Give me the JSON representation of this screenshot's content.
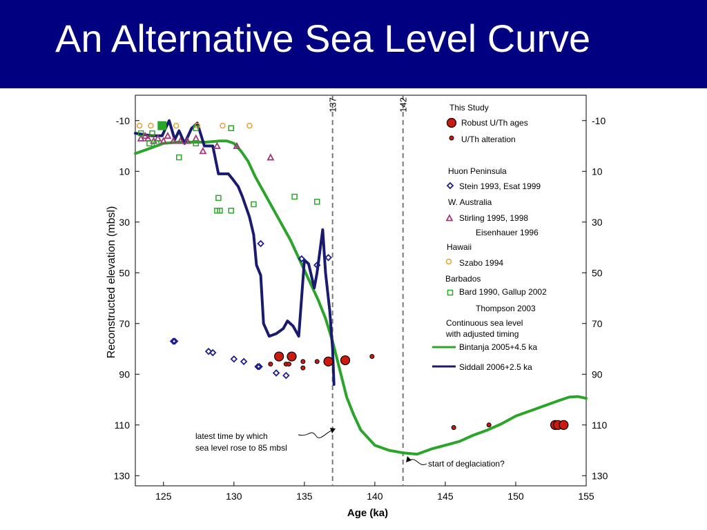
{
  "slide": {
    "title": "An Alternative Sea Level Curve"
  },
  "chart_data": {
    "type": "scatter",
    "title": "",
    "xlabel": "Age (ka)",
    "ylabel": "Reconstructed elevation (mbsl)",
    "xlim": [
      123,
      155
    ],
    "ylim": [
      -20,
      134
    ],
    "y_inverted": true,
    "x_ticks": [
      125,
      130,
      135,
      140,
      145,
      150,
      155
    ],
    "y_ticks": [
      -10,
      10,
      30,
      50,
      70,
      90,
      110,
      130
    ],
    "vlines": [
      {
        "x": 137,
        "label": "137"
      },
      {
        "x": 142,
        "label": "142"
      }
    ],
    "annotations": [
      {
        "lines": [
          "latest time by which",
          "sea level rose to 85 mbsl"
        ],
        "x": 137,
        "y": 120
      },
      {
        "text": "start of deglaciation?",
        "x": 142,
        "y": 134
      }
    ],
    "legend": {
      "position": "right",
      "groups": [
        {
          "header": "This Study",
          "entries": [
            {
              "label": "Robust U/Th ages",
              "marker": "big-red-dot"
            },
            {
              "label": "U/Th alteration",
              "marker": "small-red-dot"
            }
          ]
        },
        {
          "header": "Huon Peninsula",
          "entries": [
            {
              "label": "Stein 1993, Esat 1999",
              "marker": "blue-diamond"
            }
          ]
        },
        {
          "header": "W. Australia",
          "entries": [
            {
              "label": "Stirling 1995, 1998",
              "marker": "purple-triangle"
            },
            {
              "label": "Eisenhauer 1996",
              "marker": "none"
            }
          ]
        },
        {
          "header": "Hawaii",
          "entries": [
            {
              "label": "Szabo 1994",
              "marker": "orange-circle"
            }
          ]
        },
        {
          "header": "Barbados",
          "entries": [
            {
              "label": "Bard 1990, Gallup 2002",
              "marker": "green-square"
            },
            {
              "label": "Thompson 2003",
              "marker": "none"
            }
          ]
        },
        {
          "header": "Continuous sea level\nwith adjusted timing",
          "entries": [
            {
              "label": "Bintanja 2005+4.5 ka",
              "marker": "green-line"
            },
            {
              "label": "Siddall 2006+2.5 ka",
              "marker": "navy-line"
            }
          ]
        }
      ]
    },
    "colors": {
      "robust": "#cc1a10",
      "huon": "#1e1e8c",
      "waust": "#a0367a",
      "hawaii": "#e8a030",
      "barbados": "#2aa52a",
      "bintanja": "#2aa52a",
      "siddall": "#1a1a6e"
    },
    "series": [
      {
        "name": "Robust U/Th ages",
        "kind": "points",
        "color": "#cc1a10",
        "points": [
          [
            133.2,
            83
          ],
          [
            134.1,
            83
          ],
          [
            136.7,
            85
          ],
          [
            137.9,
            84.5
          ],
          [
            152.8,
            110
          ],
          [
            153.0,
            110
          ],
          [
            153.4,
            110
          ]
        ]
      },
      {
        "name": "U/Th alteration",
        "kind": "points",
        "color": "#cc1a10",
        "points": [
          [
            132.6,
            86
          ],
          [
            133.7,
            86
          ],
          [
            133.9,
            86
          ],
          [
            134.9,
            85
          ],
          [
            134.9,
            87.5
          ],
          [
            135.9,
            85
          ],
          [
            139.8,
            83
          ],
          [
            145.6,
            111
          ],
          [
            148.1,
            110
          ]
        ]
      },
      {
        "name": "Stein 1993, Esat 1999",
        "kind": "points",
        "color": "#1e1e8c",
        "points": [
          [
            125.7,
            77
          ],
          [
            125.8,
            77
          ],
          [
            128.2,
            81
          ],
          [
            128.5,
            81.5
          ],
          [
            130.0,
            84
          ],
          [
            130.7,
            85
          ],
          [
            131.7,
            87
          ],
          [
            131.8,
            87
          ],
          [
            133.0,
            89.5
          ],
          [
            133.7,
            90.5
          ],
          [
            131.9,
            38.5
          ],
          [
            134.8,
            44.5
          ],
          [
            135.9,
            47
          ],
          [
            136.7,
            44
          ]
        ]
      },
      {
        "name": "Stirling 1995, 1998",
        "kind": "points",
        "color": "#a0367a",
        "points": [
          [
            123.4,
            -3
          ],
          [
            123.7,
            -4
          ],
          [
            123.9,
            -3
          ],
          [
            124.3,
            -2
          ],
          [
            124.6,
            -3
          ],
          [
            125.0,
            -2
          ],
          [
            125.3,
            -4
          ],
          [
            125.7,
            -2
          ],
          [
            126.2,
            -2
          ],
          [
            126.7,
            -2
          ],
          [
            127.3,
            -3
          ],
          [
            127.8,
            2
          ],
          [
            128.8,
            0
          ],
          [
            130.2,
            0
          ],
          [
            132.6,
            4.5
          ]
        ]
      },
      {
        "name": "Szabo 1994",
        "kind": "points",
        "color": "#e8a030",
        "points": [
          [
            123.3,
            -8
          ],
          [
            124.1,
            -8
          ],
          [
            125.0,
            -8
          ],
          [
            125.9,
            -8
          ],
          [
            127.4,
            -8
          ],
          [
            129.2,
            -8
          ],
          [
            131.1,
            -8
          ]
        ]
      },
      {
        "name": "Bard 1990, Gallup 2002",
        "kind": "points",
        "color": "#2aa52a",
        "points": [
          [
            123.4,
            -5
          ],
          [
            124.2,
            -5
          ],
          [
            124.9,
            -8
          ],
          [
            126.1,
            4.5
          ],
          [
            127.3,
            -7
          ],
          [
            129.8,
            -7
          ],
          [
            124.0,
            -1
          ],
          [
            124.5,
            -1
          ],
          [
            127.3,
            -1
          ],
          [
            128.9,
            20.5
          ],
          [
            129.0,
            25.5
          ],
          [
            128.8,
            25.5
          ],
          [
            129.8,
            25.5
          ],
          [
            131.4,
            23
          ],
          [
            134.3,
            20
          ],
          [
            135.9,
            22
          ]
        ]
      },
      {
        "name": "Bintanja 2005+4.5 ka",
        "kind": "line",
        "color": "#2aa52a",
        "points": [
          [
            123.0,
            3
          ],
          [
            124.0,
            1
          ],
          [
            125.0,
            -1
          ],
          [
            126.0,
            -1.5
          ],
          [
            127.0,
            -1.5
          ],
          [
            128.0,
            -1.5
          ],
          [
            129.0,
            -2
          ],
          [
            129.5,
            -2
          ],
          [
            130.0,
            -1
          ],
          [
            130.5,
            2
          ],
          [
            131.0,
            6
          ],
          [
            131.5,
            12
          ],
          [
            132.0,
            17
          ],
          [
            132.5,
            22
          ],
          [
            133.0,
            27
          ],
          [
            133.5,
            32
          ],
          [
            134.0,
            37
          ],
          [
            134.5,
            43
          ],
          [
            135.0,
            49
          ],
          [
            135.5,
            55
          ],
          [
            136.0,
            61
          ],
          [
            136.5,
            68
          ],
          [
            137.0,
            77
          ],
          [
            137.5,
            88
          ],
          [
            138.0,
            99
          ],
          [
            138.5,
            106
          ],
          [
            139.0,
            112
          ],
          [
            140.0,
            118
          ],
          [
            141.0,
            120
          ],
          [
            142.0,
            121
          ],
          [
            143.0,
            121.5
          ],
          [
            144.0,
            119.5
          ],
          [
            145.0,
            118
          ],
          [
            146.0,
            116.5
          ],
          [
            147.0,
            114
          ],
          [
            148.0,
            112
          ],
          [
            149.0,
            109.5
          ],
          [
            150.0,
            106.5
          ],
          [
            151.0,
            104.5
          ],
          [
            152.0,
            102.5
          ],
          [
            153.0,
            100.5
          ],
          [
            153.8,
            99
          ],
          [
            154.4,
            98.8
          ],
          [
            155.0,
            99.5
          ]
        ]
      },
      {
        "name": "Siddall 2006+2.5 ka",
        "kind": "line",
        "color": "#1a1a6e",
        "points": [
          [
            123.0,
            -5
          ],
          [
            124.2,
            -4
          ],
          [
            124.9,
            -4
          ],
          [
            125.4,
            -10
          ],
          [
            125.8,
            -2.5
          ],
          [
            126.1,
            -6
          ],
          [
            126.5,
            -1
          ],
          [
            127.0,
            -7
          ],
          [
            127.4,
            -9
          ],
          [
            127.9,
            0
          ],
          [
            128.5,
            0
          ],
          [
            128.9,
            11
          ],
          [
            129.2,
            11
          ],
          [
            129.6,
            11
          ],
          [
            129.9,
            13
          ],
          [
            130.3,
            16
          ],
          [
            130.6,
            20
          ],
          [
            131.1,
            28
          ],
          [
            131.4,
            35
          ],
          [
            131.6,
            47
          ],
          [
            131.9,
            51
          ],
          [
            132.1,
            70
          ],
          [
            132.5,
            75
          ],
          [
            133.0,
            74
          ],
          [
            133.5,
            72
          ],
          [
            133.8,
            69
          ],
          [
            134.2,
            71
          ],
          [
            134.6,
            75
          ],
          [
            135.0,
            45
          ],
          [
            135.3,
            46.5
          ],
          [
            135.7,
            56
          ],
          [
            135.9,
            50
          ],
          [
            136.3,
            33
          ],
          [
            136.5,
            50
          ],
          [
            136.8,
            65
          ],
          [
            137.0,
            80
          ],
          [
            137.1,
            94
          ]
        ]
      }
    ]
  }
}
